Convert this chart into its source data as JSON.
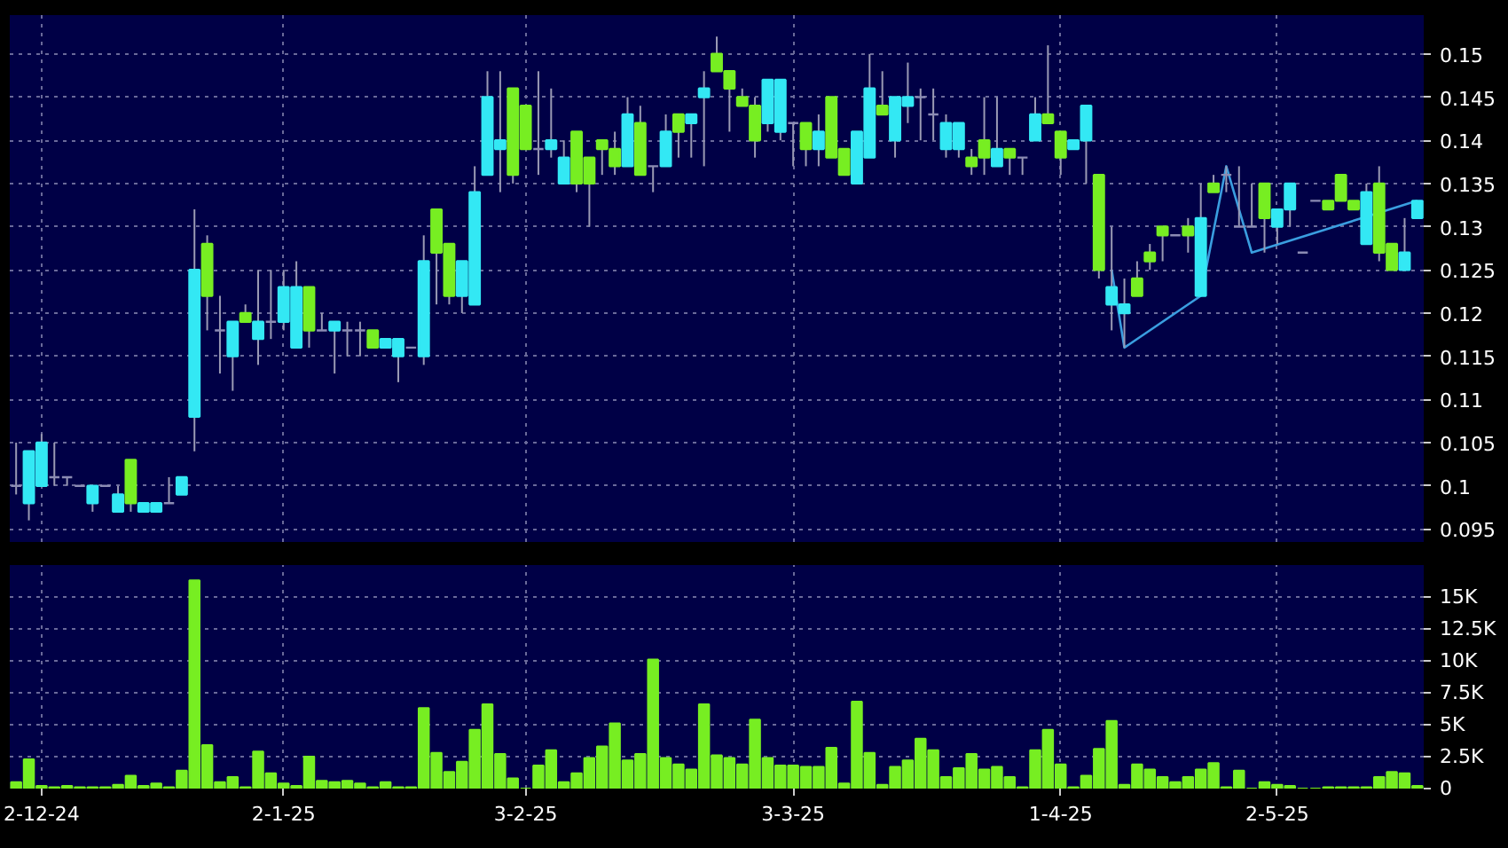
{
  "chart_data": [
    {
      "type": "candlestick",
      "ylim": [
        0.0935,
        0.1545
      ],
      "yticks": [
        0.095,
        0.1,
        0.105,
        0.11,
        0.115,
        0.12,
        0.125,
        0.13,
        0.135,
        0.14,
        0.145,
        0.15
      ],
      "grid": true,
      "tick_labels": "y",
      "categories": [
        null,
        null,
        null,
        null,
        null,
        null,
        null,
        null,
        null,
        null,
        null,
        null,
        null,
        null,
        null,
        null,
        null,
        null,
        null,
        null,
        null,
        null,
        null,
        null,
        null,
        null,
        null,
        null,
        null,
        null,
        null,
        null,
        null,
        null,
        null,
        null,
        null,
        null,
        null,
        null,
        null,
        null,
        null,
        null,
        null,
        null,
        null,
        null,
        null,
        null,
        null,
        null,
        null,
        null,
        null,
        null,
        null,
        null,
        null,
        null,
        null,
        null,
        null,
        null,
        null,
        null,
        null,
        null,
        null,
        null,
        null,
        null,
        null,
        null,
        null,
        null,
        null,
        null,
        null,
        null,
        null,
        null,
        null,
        null,
        null,
        null,
        null,
        null,
        null,
        null,
        null,
        null,
        null,
        null,
        null,
        null,
        null,
        null,
        null,
        null,
        null,
        null,
        null,
        null,
        null,
        null,
        null,
        null,
        null,
        null,
        null
      ],
      "ohlc": [
        [
          0.1,
          0.105,
          0.099,
          0.1
        ],
        [
          0.098,
          0.104,
          0.096,
          0.104
        ],
        [
          0.1,
          0.106,
          0.1,
          0.105
        ],
        [
          0.101,
          0.105,
          0.1,
          0.101
        ],
        [
          0.101,
          0.101,
          0.1,
          0.101
        ],
        [
          0.1,
          0.1,
          0.1,
          0.1
        ],
        [
          0.098,
          0.1,
          0.097,
          0.1
        ],
        [
          0.1,
          0.1,
          0.1,
          0.1
        ],
        [
          0.097,
          0.1,
          0.097,
          0.099
        ],
        [
          0.103,
          0.103,
          0.097,
          0.098
        ],
        [
          0.097,
          0.098,
          0.097,
          0.098
        ],
        [
          0.097,
          0.098,
          0.097,
          0.098
        ],
        [
          0.098,
          0.101,
          0.098,
          0.098
        ],
        [
          0.099,
          0.101,
          0.099,
          0.101
        ],
        [
          0.108,
          0.132,
          0.104,
          0.125
        ],
        [
          0.128,
          0.129,
          0.118,
          0.122
        ],
        [
          0.118,
          0.122,
          0.113,
          0.118
        ],
        [
          0.115,
          0.119,
          0.111,
          0.119
        ],
        [
          0.12,
          0.121,
          0.119,
          0.119
        ],
        [
          0.117,
          0.125,
          0.114,
          0.119
        ],
        [
          0.119,
          0.125,
          0.117,
          0.119
        ],
        [
          0.119,
          0.125,
          0.118,
          0.123
        ],
        [
          0.116,
          0.126,
          0.116,
          0.123
        ],
        [
          0.123,
          0.123,
          0.116,
          0.118
        ],
        [
          0.118,
          0.12,
          0.118,
          0.118
        ],
        [
          0.118,
          0.119,
          0.113,
          0.119
        ],
        [
          0.118,
          0.119,
          0.115,
          0.118
        ],
        [
          0.118,
          0.119,
          0.115,
          0.118
        ],
        [
          0.118,
          0.118,
          0.116,
          0.116
        ],
        [
          0.116,
          0.117,
          0.116,
          0.117
        ],
        [
          0.115,
          0.117,
          0.112,
          0.117
        ],
        [
          0.116,
          0.116,
          0.116,
          0.116
        ],
        [
          0.115,
          0.129,
          0.114,
          0.126
        ],
        [
          0.132,
          0.132,
          0.121,
          0.127
        ],
        [
          0.128,
          0.128,
          0.121,
          0.122
        ],
        [
          0.122,
          0.126,
          0.12,
          0.126
        ],
        [
          0.121,
          0.137,
          0.121,
          0.134
        ],
        [
          0.136,
          0.148,
          0.136,
          0.145
        ],
        [
          0.139,
          0.148,
          0.134,
          0.14
        ],
        [
          0.146,
          0.146,
          0.135,
          0.136
        ],
        [
          0.144,
          0.144,
          0.139,
          0.139
        ],
        [
          0.139,
          0.148,
          0.136,
          0.139
        ],
        [
          0.139,
          0.146,
          0.138,
          0.14
        ],
        [
          0.135,
          0.14,
          0.135,
          0.138
        ],
        [
          0.141,
          0.141,
          0.134,
          0.135
        ],
        [
          0.138,
          0.138,
          0.13,
          0.135
        ],
        [
          0.14,
          0.14,
          0.136,
          0.139
        ],
        [
          0.139,
          0.141,
          0.136,
          0.137
        ],
        [
          0.137,
          0.145,
          0.137,
          0.143
        ],
        [
          0.142,
          0.144,
          0.136,
          0.136
        ],
        [
          0.137,
          0.137,
          0.134,
          0.137
        ],
        [
          0.137,
          0.143,
          0.137,
          0.141
        ],
        [
          0.143,
          0.143,
          0.138,
          0.141
        ],
        [
          0.142,
          0.143,
          0.138,
          0.143
        ],
        [
          0.145,
          0.148,
          0.137,
          0.146
        ],
        [
          0.15,
          0.152,
          0.148,
          0.148
        ],
        [
          0.148,
          0.148,
          0.141,
          0.146
        ],
        [
          0.145,
          0.146,
          0.144,
          0.144
        ],
        [
          0.144,
          0.145,
          0.138,
          0.14
        ],
        [
          0.142,
          0.147,
          0.141,
          0.147
        ],
        [
          0.141,
          0.147,
          0.14,
          0.147
        ],
        [
          0.142,
          0.142,
          0.137,
          0.142
        ],
        [
          0.142,
          0.142,
          0.137,
          0.139
        ],
        [
          0.139,
          0.143,
          0.137,
          0.141
        ],
        [
          0.145,
          0.145,
          0.138,
          0.138
        ],
        [
          0.139,
          0.139,
          0.136,
          0.136
        ],
        [
          0.135,
          0.141,
          0.135,
          0.141
        ],
        [
          0.138,
          0.15,
          0.138,
          0.146
        ],
        [
          0.144,
          0.148,
          0.143,
          0.143
        ],
        [
          0.14,
          0.145,
          0.138,
          0.145
        ],
        [
          0.144,
          0.149,
          0.142,
          0.145
        ],
        [
          0.145,
          0.146,
          0.14,
          0.145
        ],
        [
          0.143,
          0.146,
          0.14,
          0.143
        ],
        [
          0.139,
          0.143,
          0.138,
          0.142
        ],
        [
          0.139,
          0.142,
          0.138,
          0.142
        ],
        [
          0.138,
          0.139,
          0.136,
          0.137
        ],
        [
          0.14,
          0.145,
          0.136,
          0.138
        ],
        [
          0.137,
          0.145,
          0.137,
          0.139
        ],
        [
          0.139,
          0.139,
          0.136,
          0.138
        ],
        [
          0.138,
          0.138,
          0.136,
          0.138
        ],
        [
          0.14,
          0.145,
          0.14,
          0.143
        ],
        [
          0.143,
          0.151,
          0.142,
          0.142
        ],
        [
          0.141,
          0.141,
          0.136,
          0.138
        ],
        [
          0.139,
          0.14,
          0.139,
          0.14
        ],
        [
          0.14,
          0.144,
          0.135,
          0.144
        ],
        [
          0.136,
          0.136,
          0.124,
          0.125
        ],
        [
          0.121,
          0.13,
          0.118,
          0.123
        ],
        [
          0.12,
          0.124,
          0.116,
          0.121
        ],
        [
          0.124,
          0.126,
          0.122,
          0.122
        ],
        [
          0.127,
          0.128,
          0.125,
          0.126
        ],
        [
          0.13,
          0.13,
          0.126,
          0.129
        ],
        [
          0.129,
          0.129,
          0.129,
          0.129
        ],
        [
          0.13,
          0.131,
          0.127,
          0.129
        ],
        [
          0.122,
          0.135,
          0.122,
          0.131
        ],
        [
          0.135,
          0.136,
          0.134,
          0.134
        ],
        [
          0.136,
          0.137,
          0.134,
          0.136
        ],
        [
          0.13,
          0.137,
          0.13,
          0.13
        ],
        [
          0.13,
          0.135,
          0.13,
          0.13
        ],
        [
          0.135,
          0.135,
          0.127,
          0.131
        ],
        [
          0.13,
          0.132,
          0.128,
          0.132
        ],
        [
          0.132,
          0.135,
          0.13,
          0.135
        ],
        [
          0.127,
          0.127,
          0.127,
          0.127
        ],
        [
          0.133,
          0.133,
          0.133,
          0.133
        ],
        [
          0.133,
          0.133,
          0.132,
          0.132
        ],
        [
          0.136,
          0.136,
          0.133,
          0.133
        ],
        [
          0.133,
          0.133,
          0.132,
          0.132
        ],
        [
          0.128,
          0.135,
          0.128,
          0.134
        ],
        [
          0.135,
          0.137,
          0.126,
          0.127
        ],
        [
          0.128,
          0.128,
          0.125,
          0.125
        ],
        [
          0.125,
          0.131,
          0.125,
          0.127
        ],
        [
          0.131,
          0.133,
          0.131,
          0.133
        ]
      ],
      "colors": [
        "#8c8cb4",
        "#33e8f4",
        "#33e8f4",
        "#8c8cb4",
        "#8c8cb4",
        "#8c8cb4",
        "#33e8f4",
        "#8c8cb4",
        "#33e8f4",
        "#77ee22",
        "#33e8f4",
        "#33e8f4",
        "#8c8cb4",
        "#33e8f4",
        "#33e8f4",
        "#77ee22",
        "#8c8cb4",
        "#33e8f4",
        "#77ee22",
        "#33e8f4",
        "#8c8cb4",
        "#33e8f4",
        "#33e8f4",
        "#77ee22",
        "#8c8cb4",
        "#33e8f4",
        "#8c8cb4",
        "#8c8cb4",
        "#77ee22",
        "#33e8f4",
        "#33e8f4",
        "#8c8cb4",
        "#33e8f4",
        "#77ee22",
        "#77ee22",
        "#33e8f4",
        "#33e8f4",
        "#33e8f4",
        "#33e8f4",
        "#77ee22",
        "#77ee22",
        "#8c8cb4",
        "#33e8f4",
        "#33e8f4",
        "#77ee22",
        "#77ee22",
        "#77ee22",
        "#77ee22",
        "#33e8f4",
        "#77ee22",
        "#8c8cb4",
        "#33e8f4",
        "#77ee22",
        "#33e8f4",
        "#33e8f4",
        "#77ee22",
        "#77ee22",
        "#77ee22",
        "#77ee22",
        "#33e8f4",
        "#33e8f4",
        "#8c8cb4",
        "#77ee22",
        "#33e8f4",
        "#77ee22",
        "#77ee22",
        "#33e8f4",
        "#33e8f4",
        "#77ee22",
        "#33e8f4",
        "#33e8f4",
        "#8c8cb4",
        "#8c8cb4",
        "#33e8f4",
        "#33e8f4",
        "#77ee22",
        "#77ee22",
        "#33e8f4",
        "#77ee22",
        "#8c8cb4",
        "#33e8f4",
        "#77ee22",
        "#77ee22",
        "#33e8f4",
        "#33e8f4",
        "#77ee22",
        "#33e8f4",
        "#33e8f4",
        "#77ee22",
        "#77ee22",
        "#77ee22",
        "#8c8cb4",
        "#77ee22",
        "#33e8f4",
        "#77ee22",
        "#8c8cb4",
        "#8c8cb4",
        "#8c8cb4",
        "#77ee22",
        "#33e8f4",
        "#33e8f4",
        "#8c8cb4",
        "#8c8cb4",
        "#77ee22",
        "#77ee22",
        "#77ee22",
        "#33e8f4",
        "#77ee22",
        "#77ee22",
        "#33e8f4",
        "#33e8f4"
      ],
      "series": [
        {
          "type": "line",
          "color": "#3a9ee0",
          "values": [
            null,
            null,
            null,
            null,
            null,
            null,
            null,
            null,
            null,
            null,
            null,
            null,
            null,
            null,
            null,
            null,
            null,
            null,
            null,
            null,
            null,
            null,
            null,
            null,
            null,
            null,
            null,
            null,
            null,
            null,
            null,
            null,
            null,
            null,
            null,
            null,
            null,
            null,
            null,
            null,
            null,
            null,
            null,
            null,
            null,
            null,
            null,
            null,
            null,
            null,
            null,
            null,
            null,
            null,
            null,
            null,
            null,
            null,
            null,
            null,
            null,
            null,
            null,
            null,
            null,
            null,
            null,
            null,
            null,
            null,
            null,
            null,
            null,
            null,
            null,
            null,
            null,
            null,
            null,
            null,
            null,
            null,
            null,
            null,
            null,
            null,
            0.125,
            0.116,
            null,
            null,
            null,
            null,
            null,
            0.122,
            null,
            0.137,
            null,
            0.127,
            null,
            null,
            null,
            null,
            null,
            null,
            null,
            null,
            null,
            null,
            null,
            null,
            0.133
          ]
        }
      ]
    },
    {
      "type": "bar",
      "ylim": [
        0,
        17500
      ],
      "yticks": [
        0,
        {
          "value": 2500,
          "label": "2.5K"
        },
        {
          "value": 5000,
          "label": "5K"
        },
        {
          "value": 7500,
          "label": "7.5K"
        },
        {
          "value": 10000,
          "label": "10K"
        },
        {
          "value": 12500,
          "label": "12.5K"
        },
        {
          "value": 15000,
          "label": "15K"
        }
      ],
      "grid": true,
      "color": "#77ee22",
      "categories": [
        null,
        null,
        "2-12-24",
        null,
        null,
        null,
        null,
        null,
        null,
        null,
        null,
        null,
        null,
        null,
        null,
        null,
        null,
        null,
        null,
        null,
        null,
        "2-1-25",
        null,
        null,
        null,
        null,
        null,
        null,
        null,
        null,
        null,
        null,
        null,
        null,
        null,
        null,
        null,
        null,
        null,
        null,
        "3-2-25",
        null,
        null,
        null,
        null,
        null,
        null,
        null,
        null,
        null,
        null,
        null,
        null,
        null,
        null,
        null,
        null,
        null,
        null,
        null,
        null,
        "3-3-25",
        null,
        null,
        null,
        null,
        null,
        null,
        null,
        null,
        null,
        null,
        null,
        null,
        null,
        null,
        null,
        null,
        null,
        null,
        null,
        null,
        "1-4-25",
        null,
        null,
        null,
        null,
        null,
        null,
        null,
        null,
        null,
        null,
        null,
        null,
        null,
        null,
        null,
        null,
        "2-5-25",
        null,
        null,
        null,
        null,
        null,
        null,
        null,
        null,
        null,
        null,
        null
      ],
      "values": [
        500,
        2300,
        200,
        100,
        200,
        100,
        100,
        100,
        300,
        1000,
        200,
        400,
        100,
        1400,
        16300,
        3400,
        500,
        900,
        100,
        2900,
        1200,
        400,
        200,
        2500,
        600,
        500,
        600,
        400,
        100,
        500,
        100,
        100,
        6300,
        2800,
        1300,
        2100,
        4600,
        6600,
        2700,
        800,
        0,
        1800,
        3000,
        500,
        1200,
        2400,
        3300,
        5100,
        2200,
        2700,
        10100,
        2400,
        1900,
        1500,
        6600,
        2600,
        2400,
        1900,
        5400,
        2400,
        1800,
        1800,
        1700,
        1700,
        3200,
        400,
        6800,
        2800,
        300,
        1700,
        2200,
        3900,
        3000,
        900,
        1600,
        2700,
        1500,
        1700,
        900,
        100,
        3000,
        4600,
        1900,
        100,
        1000,
        3100,
        5300,
        300,
        1900,
        1500,
        900,
        500,
        900,
        1500,
        2000,
        100,
        1400,
        0,
        500,
        300,
        200,
        0,
        0,
        100,
        100,
        100,
        100,
        900,
        1300,
        1200,
        200
      ]
    }
  ]
}
